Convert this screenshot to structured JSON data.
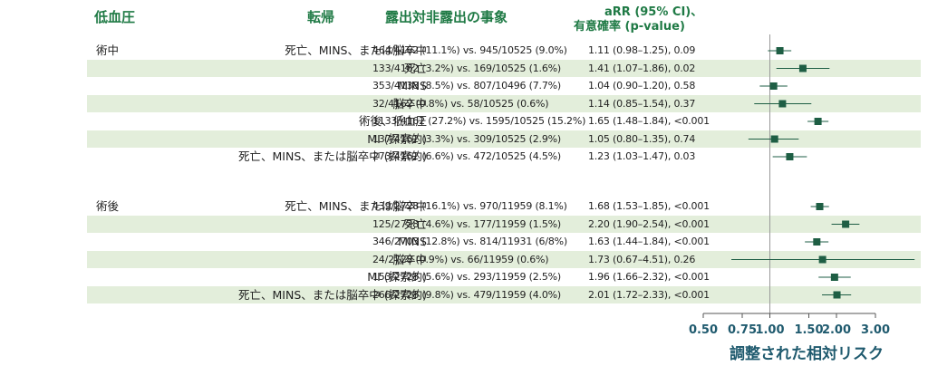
{
  "headers": {
    "group": "低血圧",
    "outcome": "転帰",
    "events": "露出対非露出の事象",
    "arr_line1": "aRR (95% CI)、",
    "arr_line2": "有意確率 (p-value)"
  },
  "colors": {
    "header_green": "#1f7a45",
    "marker": "#1e5e44",
    "row_shade": "#e3eedb",
    "axis_text": "#1f5a6e"
  },
  "chart_data": {
    "type": "forest",
    "xlabel": "調整された相対リスク",
    "xscale": "log",
    "xlim": [
      0.5,
      3.0
    ],
    "ticks": [
      0.5,
      0.75,
      1.0,
      1.5,
      2.0,
      3.0
    ],
    "tick_labels": [
      "0.50",
      "0.75",
      "1.00",
      "1.50",
      "2.00",
      "3.00"
    ],
    "reference_line": 1.0,
    "groups": [
      {
        "name": "術中",
        "rows": [
          {
            "outcome": "死亡、MINS、または脳卒中",
            "events": "464/4162 (11.1%) vs. 945/10525 (9.0%)",
            "arr_text": "1.11 (0.98–1.25), 0.09",
            "est": 1.11,
            "lo": 0.98,
            "hi": 1.25
          },
          {
            "outcome": "死亡",
            "events": "133/4162 (3.2%) vs. 169/10525 (1.6%)",
            "arr_text": "1.41 (1.07–1.86), 0.02",
            "est": 1.41,
            "lo": 1.07,
            "hi": 1.86
          },
          {
            "outcome": "MINS",
            "events": "353/4138 (8.5%) vs. 807/10496 (7.7%)",
            "arr_text": "1.04 (0.90–1.20), 0.58",
            "est": 1.04,
            "lo": 0.9,
            "hi": 1.2
          },
          {
            "outcome": "脳卒中",
            "events": "32/4162 (0.8%) vs. 58/10525 (0.6%)",
            "arr_text": "1.14 (0.85–1.54), 0.37",
            "est": 1.14,
            "lo": 0.85,
            "hi": 1.54
          },
          {
            "outcome": "術後、低血圧",
            "events": "1133/4162 (27.2%) vs. 1595/10525 (15.2%)",
            "arr_text": "1.65 (1.48–1.84), <0.001",
            "est": 1.65,
            "lo": 1.48,
            "hi": 1.84
          },
          {
            "outcome": "MI (探索的)",
            "events": "137/4162 (3.3%) vs. 309/10525 (2.9%)",
            "arr_text": "1.05 (0.80–1.35), 0.74",
            "est": 1.05,
            "lo": 0.8,
            "hi": 1.35
          },
          {
            "outcome": "死亡、MINS、または脳卒中 (探索的)",
            "events": "273/4162 (6.6%) vs. 472/10525 (4.5%)",
            "arr_text": "1.23 (1.03–1.47), 0.03",
            "est": 1.23,
            "lo": 1.03,
            "hi": 1.47
          }
        ]
      },
      {
        "name": "術後",
        "rows": [
          {
            "outcome": "死亡、MINS、または脳卒中",
            "events": "439/2728 (16.1%) vs. 970/11959 (8.1%)",
            "arr_text": "1.68 (1.53–1.85), <0.001",
            "est": 1.68,
            "lo": 1.53,
            "hi": 1.85
          },
          {
            "outcome": "死亡",
            "events": "125/2728 (4.6%) vs. 177/11959 (1.5%)",
            "arr_text": "2.20 (1.90–2.54), <0.001",
            "est": 2.2,
            "lo": 1.9,
            "hi": 2.54
          },
          {
            "outcome": "MINS",
            "events": "346/2703 (12.8%) vs. 814/11931 (6/8%)",
            "arr_text": "1.63 (1.44–1.84), <0.001",
            "est": 1.63,
            "lo": 1.44,
            "hi": 1.84
          },
          {
            "outcome": "脳卒中",
            "events": "24/2728 (0.9%) vs. 66/11959 (0.6%)",
            "arr_text": "1.73 (0.67–4.51), 0.26",
            "est": 1.73,
            "lo": 0.67,
            "hi": 4.51
          },
          {
            "outcome": "MI (探索的)",
            "events": "153/2728 (5.6%) vs. 293/11959 (2.5%)",
            "arr_text": "1.96 (1.66–2.32), <0.001",
            "est": 1.96,
            "lo": 1.66,
            "hi": 2.32
          },
          {
            "outcome": "死亡、MINS、または脳卒中 (探索的)",
            "events": "266/2728 (9.8%) vs. 479/11959 (4.0%)",
            "arr_text": "2.01 (1.72–2.33), <0.001",
            "est": 2.01,
            "lo": 1.72,
            "hi": 2.33
          }
        ]
      }
    ]
  }
}
